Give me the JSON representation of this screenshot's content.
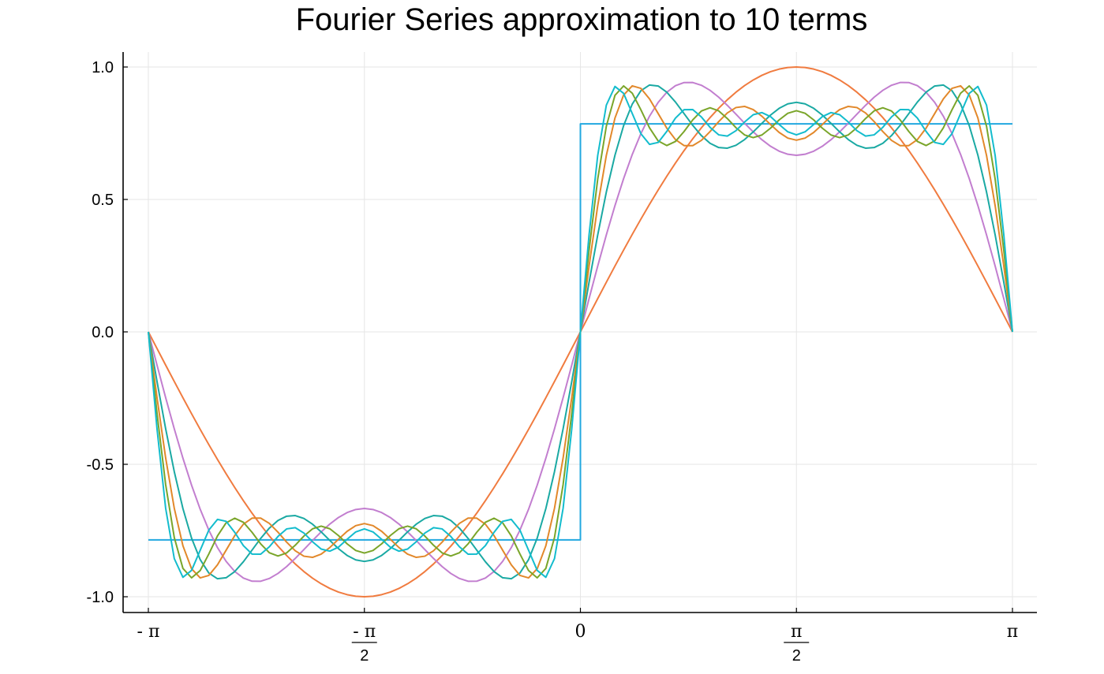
{
  "chart_data": {
    "type": "line",
    "title": "Fourier Series approximation to 10 terms",
    "xlabel": "",
    "ylabel": "",
    "xlim": [
      -3.14159265,
      3.14159265
    ],
    "ylim": [
      -1.05,
      1.05
    ],
    "grid": true,
    "legend": "none",
    "x_ticks": [
      {
        "value": -3.14159265,
        "label": "- π",
        "den": ""
      },
      {
        "value": -1.57079633,
        "label": "- π",
        "den": "2"
      },
      {
        "value": 0,
        "label": "0",
        "den": ""
      },
      {
        "value": 1.57079633,
        "label": "π",
        "den": "2"
      },
      {
        "value": 3.14159265,
        "label": "π",
        "den": ""
      }
    ],
    "y_ticks": [
      {
        "value": 1.0,
        "label": "1.0"
      },
      {
        "value": 0.5,
        "label": "0.5"
      },
      {
        "value": 0.0,
        "label": "0.0"
      },
      {
        "value": -0.5,
        "label": "-0.5"
      },
      {
        "value": -1.0,
        "label": "-1.0"
      }
    ],
    "series": [
      {
        "color": "#22a8e0",
        "kind": "step",
        "points": [
          [
            -3.14159,
            -0.7854
          ],
          [
            0,
            -0.7854
          ],
          [
            0,
            0.7854
          ],
          [
            3.14159,
            0.7854
          ]
        ]
      },
      {
        "color": "#f07b3f",
        "kind": "fourier",
        "terms": 1
      },
      {
        "color": "#c27ecf",
        "kind": "fourier",
        "terms": 2
      },
      {
        "color": "#1aa9a3",
        "kind": "fourier",
        "terms": 3
      },
      {
        "color": "#e2882a",
        "kind": "fourier",
        "terms": 4
      },
      {
        "color": "#7aa52a",
        "kind": "fourier",
        "terms": 5
      },
      {
        "color": "#13bccd",
        "kind": "fourier",
        "terms": 6
      }
    ]
  }
}
